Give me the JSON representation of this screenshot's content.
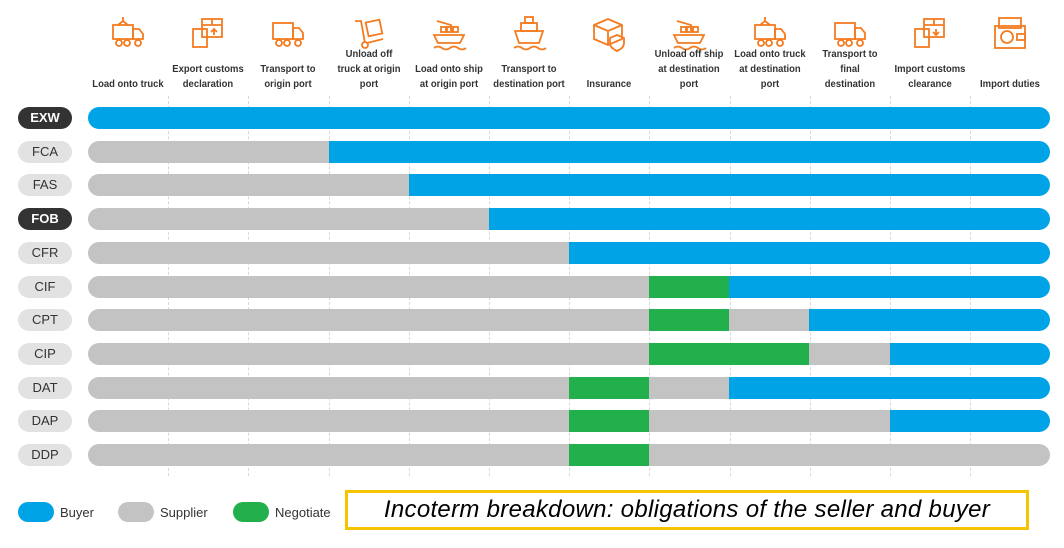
{
  "colors": {
    "buyer": "#00a3e6",
    "supplier": "#c3c3c3",
    "negotiate": "#21b04b",
    "icon": "#f47b20",
    "caption_border": "#f5c400"
  },
  "columns": [
    {
      "label": "Load onto truck",
      "icon": "container-truck-icon"
    },
    {
      "label": "Export customs declaration",
      "icon": "customs-export-icon"
    },
    {
      "label": "Transport to origin port",
      "icon": "truck-icon"
    },
    {
      "label": "Unload off truck at origin port",
      "icon": "hand-truck-icon"
    },
    {
      "label": "Load onto ship at origin port",
      "icon": "cargo-ship-crane-icon"
    },
    {
      "label": "Transport to destination port",
      "icon": "ship-icon"
    },
    {
      "label": "Insurance",
      "icon": "insured-box-icon"
    },
    {
      "label": "Unload off ship at destination port",
      "icon": "cargo-ship-crane-icon"
    },
    {
      "label": "Load onto truck at destination port",
      "icon": "container-truck-icon"
    },
    {
      "label": "Transport to final destination",
      "icon": "truck-icon"
    },
    {
      "label": "Import customs clearance",
      "icon": "customs-import-icon"
    },
    {
      "label": "Import duties",
      "icon": "money-wallet-icon"
    }
  ],
  "terms": [
    {
      "code": "EXW",
      "highlight": true,
      "cells": [
        "B",
        "B",
        "B",
        "B",
        "B",
        "B",
        "B",
        "B",
        "B",
        "B",
        "B",
        "B"
      ]
    },
    {
      "code": "FCA",
      "highlight": false,
      "cells": [
        "S",
        "S",
        "S",
        "B",
        "B",
        "B",
        "B",
        "B",
        "B",
        "B",
        "B",
        "B"
      ]
    },
    {
      "code": "FAS",
      "highlight": false,
      "cells": [
        "S",
        "S",
        "S",
        "S",
        "B",
        "B",
        "B",
        "B",
        "B",
        "B",
        "B",
        "B"
      ]
    },
    {
      "code": "FOB",
      "highlight": true,
      "cells": [
        "S",
        "S",
        "S",
        "S",
        "S",
        "B",
        "B",
        "B",
        "B",
        "B",
        "B",
        "B"
      ]
    },
    {
      "code": "CFR",
      "highlight": false,
      "cells": [
        "S",
        "S",
        "S",
        "S",
        "S",
        "S",
        "B",
        "B",
        "B",
        "B",
        "B",
        "B"
      ]
    },
    {
      "code": "CIF",
      "highlight": false,
      "cells": [
        "S",
        "S",
        "S",
        "S",
        "S",
        "S",
        "S",
        "N",
        "B",
        "B",
        "B",
        "B"
      ]
    },
    {
      "code": "CPT",
      "highlight": false,
      "cells": [
        "S",
        "S",
        "S",
        "S",
        "S",
        "S",
        "S",
        "N",
        "S",
        "B",
        "B",
        "B"
      ]
    },
    {
      "code": "CIP",
      "highlight": false,
      "cells": [
        "S",
        "S",
        "S",
        "S",
        "S",
        "S",
        "S",
        "N",
        "N",
        "S",
        "B",
        "B"
      ]
    },
    {
      "code": "DAT",
      "highlight": false,
      "cells": [
        "S",
        "S",
        "S",
        "S",
        "S",
        "S",
        "N",
        "S",
        "B",
        "B",
        "B",
        "B"
      ]
    },
    {
      "code": "DAP",
      "highlight": false,
      "cells": [
        "S",
        "S",
        "S",
        "S",
        "S",
        "S",
        "N",
        "S",
        "S",
        "S",
        "B",
        "B"
      ]
    },
    {
      "code": "DDP",
      "highlight": false,
      "cells": [
        "S",
        "S",
        "S",
        "S",
        "S",
        "S",
        "N",
        "S",
        "S",
        "S",
        "S",
        "S"
      ]
    }
  ],
  "legend": {
    "buyer": "Buyer",
    "supplier": "Supplier",
    "negotiate": "Negotiate"
  },
  "caption": "Incoterm breakdown: obligations of the seller and buyer"
}
